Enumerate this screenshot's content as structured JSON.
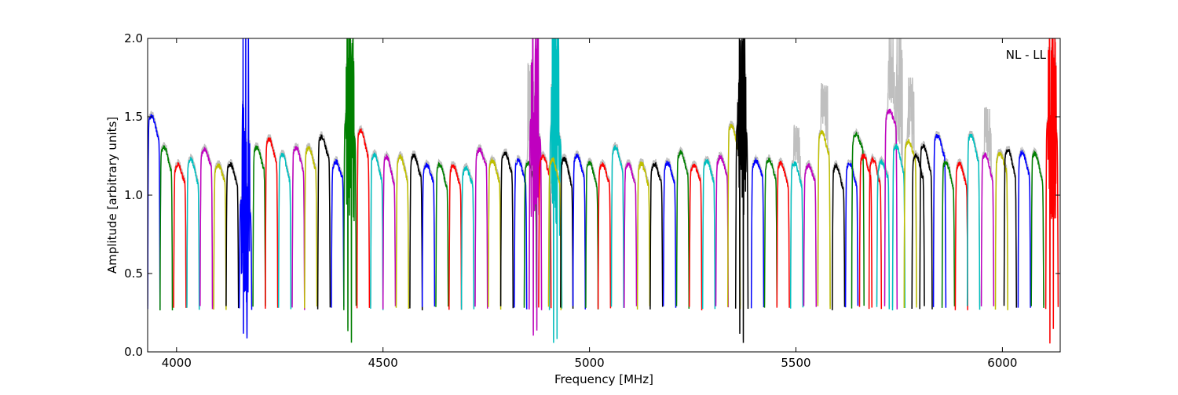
{
  "chart_data": {
    "type": "line",
    "title": "",
    "annotation": "NL - LL",
    "xlabel": "Frequency [MHz]",
    "ylabel": "Amplitude [arbitrary units]",
    "xlim": [
      3930,
      6140
    ],
    "ylim": [
      0,
      2
    ],
    "xticks": [
      4000,
      4500,
      5000,
      5500,
      6000
    ],
    "xtick_labels": [
      "4000",
      "4500",
      "5000",
      "5500",
      "6000"
    ],
    "yticks": [
      0,
      0.5,
      1,
      1.5,
      2
    ],
    "ytick_labels": [
      "0.0",
      "0.5",
      "1.0",
      "1.5",
      "2.0"
    ],
    "grid": false,
    "colors": {
      "b": "#0000ff",
      "g": "#008000",
      "r": "#ff0000",
      "c": "#00bfbf",
      "m": "#bf00bf",
      "y": "#bfbf00",
      "k": "#000000",
      "raw": "#bfbfbf"
    },
    "band_width_mhz": 30,
    "band_edge_level": 0.28,
    "series_note": "subbands: [center MHz, color, plateau peak, rfi spike max (0=none), raw/gray spike max (0=none)]",
    "subbands": [
      [
        3945,
        "b",
        1.5,
        0,
        0
      ],
      [
        3975,
        "g",
        1.3,
        0,
        0
      ],
      [
        4008,
        "r",
        1.2,
        0,
        0
      ],
      [
        4040,
        "c",
        1.22,
        0,
        0
      ],
      [
        4072,
        "m",
        1.3,
        0,
        0
      ],
      [
        4105,
        "y",
        1.2,
        0,
        0
      ],
      [
        4135,
        "k",
        1.2,
        0,
        0
      ],
      [
        4167,
        "b",
        1.0,
        2.0,
        0
      ],
      [
        4200,
        "g",
        1.3,
        0,
        0
      ],
      [
        4230,
        "r",
        1.35,
        0,
        0
      ],
      [
        4262,
        "c",
        1.25,
        0,
        0
      ],
      [
        4295,
        "m",
        1.3,
        0,
        0
      ],
      [
        4325,
        "y",
        1.3,
        0,
        0
      ],
      [
        4357,
        "k",
        1.37,
        0,
        0
      ],
      [
        4390,
        "b",
        1.22,
        0,
        0
      ],
      [
        4420,
        "g",
        1.5,
        2.0,
        0
      ],
      [
        4452,
        "r",
        1.4,
        0,
        0
      ],
      [
        4485,
        "c",
        1.25,
        0,
        0
      ],
      [
        4515,
        "m",
        1.23,
        0,
        0
      ],
      [
        4547,
        "y",
        1.24,
        0,
        0
      ],
      [
        4580,
        "k",
        1.25,
        0,
        0
      ],
      [
        4610,
        "b",
        1.2,
        0,
        0
      ],
      [
        4643,
        "g",
        1.19,
        0,
        0
      ],
      [
        4675,
        "r",
        1.19,
        0,
        0
      ],
      [
        4705,
        "c",
        1.18,
        0,
        0
      ],
      [
        4738,
        "m",
        1.3,
        0,
        0
      ],
      [
        4770,
        "y",
        1.22,
        0,
        0
      ],
      [
        4800,
        "k",
        1.27,
        0,
        0
      ],
      [
        4833,
        "b",
        1.22,
        0,
        0
      ],
      [
        4857,
        "g",
        1.2,
        0,
        1.83
      ],
      [
        4869,
        "m",
        1.5,
        2.0,
        0
      ],
      [
        4892,
        "r",
        1.25,
        0,
        0
      ],
      [
        4918,
        "c",
        1.47,
        2.0,
        0
      ],
      [
        4916,
        "y",
        1.22,
        0,
        0
      ],
      [
        4945,
        "k",
        1.22,
        0,
        0
      ],
      [
        4975,
        "b",
        1.25,
        0,
        0
      ],
      [
        5006,
        "g",
        1.2,
        0,
        0
      ],
      [
        5036,
        "r",
        1.2,
        0,
        0
      ],
      [
        5068,
        "c",
        1.3,
        0,
        0
      ],
      [
        5099,
        "m",
        1.2,
        0,
        0
      ],
      [
        5131,
        "y",
        1.2,
        0,
        0
      ],
      [
        5162,
        "k",
        1.2,
        0,
        0
      ],
      [
        5194,
        "b",
        1.21,
        0,
        0
      ],
      [
        5226,
        "g",
        1.27,
        0,
        0
      ],
      [
        5257,
        "r",
        1.2,
        0,
        0
      ],
      [
        5289,
        "c",
        1.22,
        0,
        0
      ],
      [
        5321,
        "m",
        1.25,
        0,
        0
      ],
      [
        5350,
        "y",
        1.43,
        0,
        0
      ],
      [
        5369,
        "k",
        1.5,
        2.0,
        0
      ],
      [
        5407,
        "b",
        1.23,
        0,
        0
      ],
      [
        5439,
        "g",
        1.23,
        0,
        0
      ],
      [
        5469,
        "r",
        1.2,
        0,
        0
      ],
      [
        5502,
        "c",
        1.2,
        0,
        1.43
      ],
      [
        5534,
        "m",
        1.2,
        0,
        0
      ],
      [
        5568,
        "y",
        1.4,
        0,
        1.7
      ],
      [
        5603,
        "k",
        1.18,
        0,
        0
      ],
      [
        5635,
        "b",
        1.2,
        0,
        0
      ],
      [
        5650,
        "g",
        1.4,
        0,
        0
      ],
      [
        5669,
        "r",
        1.25,
        0,
        0
      ],
      [
        5692,
        "r",
        1.22,
        0,
        0
      ],
      [
        5711,
        "c",
        1.22,
        0,
        0
      ],
      [
        5730,
        "m",
        1.55,
        0,
        2.0
      ],
      [
        5749,
        "c",
        1.3,
        0,
        2.0
      ],
      [
        5777,
        "y",
        1.35,
        0,
        1.75
      ],
      [
        5796,
        "k",
        1.25,
        0,
        0
      ],
      [
        5815,
        "k",
        1.3,
        0,
        0
      ],
      [
        5848,
        "b",
        1.38,
        0,
        0
      ],
      [
        5869,
        "g",
        1.2,
        0,
        0
      ],
      [
        5901,
        "r",
        1.2,
        0,
        0
      ],
      [
        5930,
        "c",
        1.37,
        0,
        0
      ],
      [
        5964,
        "m",
        1.25,
        0,
        1.55
      ],
      [
        5998,
        "y",
        1.27,
        0,
        0
      ],
      [
        6019,
        "k",
        1.28,
        0,
        0
      ],
      [
        6053,
        "b",
        1.27,
        0,
        0
      ],
      [
        6085,
        "g",
        1.25,
        0,
        0
      ],
      [
        6120,
        "r",
        1.5,
        2.0,
        0
      ]
    ]
  }
}
